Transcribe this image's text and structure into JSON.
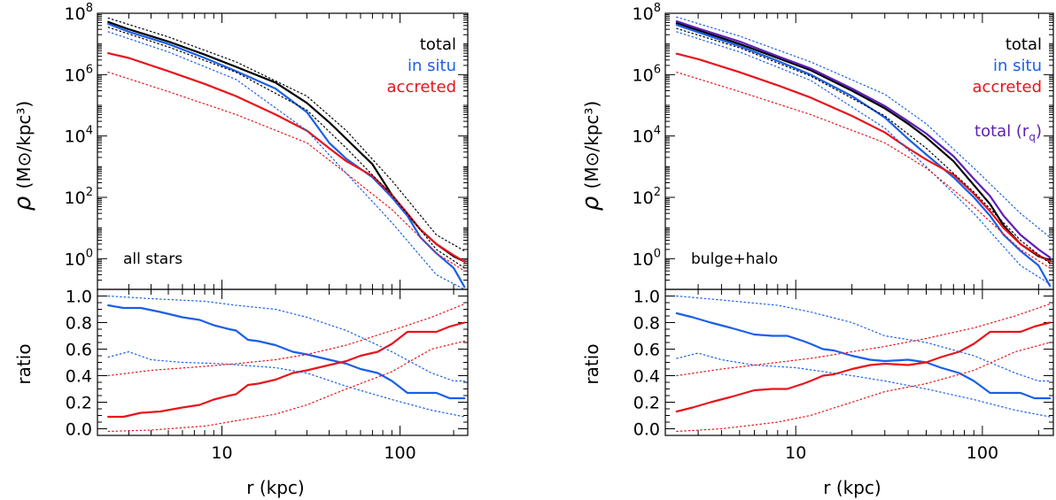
{
  "chart_data": [
    {
      "type": "line",
      "panel": "left-top",
      "annotation": "all stars",
      "xlabel": "",
      "ylabel": "ρ (M⊙/kpc³)",
      "xscale": "log",
      "yscale": "log",
      "xlim": [
        2.0,
        240
      ],
      "ylim": [
        0.1,
        100000000
      ],
      "ytick_labels": [
        "10^0",
        "10^2",
        "10^4",
        "10^6",
        "10^8"
      ],
      "legend": [
        "total",
        "in situ",
        "accreted"
      ],
      "legend_colors": [
        "#000000",
        "#1a5fe8",
        "#e8141b"
      ],
      "series": [
        {
          "name": "total",
          "style": "solid",
          "color": "#000000",
          "x": [
            2.3,
            3,
            5,
            8,
            12,
            20,
            30,
            40,
            50,
            70,
            90,
            110,
            130,
            160,
            200,
            230
          ],
          "y": [
            52000000.0,
            30000000.0,
            12000000.0,
            4500000.0,
            1800000.0,
            550000.0,
            120000.0,
            28000.0,
            8000,
            1200,
            120,
            28,
            9,
            3,
            1.2,
            0.8
          ]
        },
        {
          "name": "in situ",
          "style": "solid",
          "color": "#1a5fe8",
          "x": [
            2.3,
            3,
            5,
            8,
            12,
            20,
            30,
            40,
            50,
            70,
            90,
            110,
            130,
            160,
            200,
            230
          ],
          "y": [
            45000000.0,
            25000000.0,
            10000000.0,
            3500000.0,
            1300000.0,
            350000.0,
            60000.0,
            6000,
            1800,
            450,
            100,
            25,
            5,
            1.5,
            0.5,
            0.12
          ]
        },
        {
          "name": "accreted",
          "style": "solid",
          "color": "#e8141b",
          "x": [
            2.3,
            3,
            5,
            8,
            12,
            20,
            30,
            40,
            50,
            70,
            90,
            110,
            130,
            160,
            200,
            230
          ],
          "y": [
            5000000.0,
            3500000.0,
            1300000.0,
            500000.0,
            200000.0,
            50000.0,
            15000.0,
            4000,
            1500,
            500,
            120,
            30,
            9,
            3,
            1.3,
            0.8
          ]
        },
        {
          "name": "",
          "style": "dotted",
          "color": "#000000",
          "x": [
            2.3,
            5,
            12,
            30,
            50,
            90,
            160,
            230
          ],
          "y": [
            70000000.0,
            17000000.0,
            2600000.0,
            200000.0,
            15000.0,
            350,
            6,
            1.8
          ]
        },
        {
          "name": "",
          "style": "dotted",
          "color": "#000000",
          "x": [
            2.3,
            5,
            12,
            30,
            50,
            90,
            160,
            230
          ],
          "y": [
            35000000.0,
            8000000.0,
            1200000.0,
            70000.0,
            4000,
            120,
            2,
            0.5
          ]
        },
        {
          "name": "",
          "style": "dotted",
          "color": "#1a5fe8",
          "x": [
            2.3,
            5,
            12,
            30,
            50,
            90,
            160,
            230
          ],
          "y": [
            25000000.0,
            5500000.0,
            700000.0,
            15000.0,
            600,
            15,
            0.3,
            0.1
          ]
        },
        {
          "name": "",
          "style": "dotted",
          "color": "#e8141b",
          "x": [
            2.3,
            5,
            12,
            30,
            50,
            90,
            160,
            230
          ],
          "y": [
            1200000.0,
            280000.0,
            50000.0,
            6000,
            600,
            40,
            1.5,
            0.4
          ]
        }
      ]
    },
    {
      "type": "line",
      "panel": "left-bottom",
      "xlabel": "r (kpc)",
      "ylabel": "ratio",
      "xscale": "log",
      "xlim": [
        2.0,
        240
      ],
      "ylim": [
        -0.05,
        1.05
      ],
      "xtick_labels": [
        "10",
        "100"
      ],
      "ytick_labels": [
        "0.0",
        "0.2",
        "0.4",
        "0.6",
        "0.8",
        "1.0"
      ],
      "series": [
        {
          "name": "in situ",
          "style": "solid",
          "color": "#1a5fe8",
          "x": [
            2.3,
            2.8,
            3.5,
            4.5,
            6,
            7.5,
            9,
            11,
            12,
            14,
            16,
            20,
            25,
            30,
            40,
            50,
            60,
            75,
            90,
            110,
            130,
            160,
            190,
            230
          ],
          "y": [
            0.93,
            0.91,
            0.91,
            0.88,
            0.84,
            0.82,
            0.78,
            0.75,
            0.74,
            0.67,
            0.66,
            0.63,
            0.58,
            0.56,
            0.52,
            0.49,
            0.45,
            0.42,
            0.36,
            0.27,
            0.27,
            0.27,
            0.23,
            0.23
          ]
        },
        {
          "name": "accreted",
          "style": "solid",
          "color": "#e8141b",
          "x": [
            2.3,
            2.8,
            3.5,
            4.5,
            6,
            7.5,
            9,
            11,
            12,
            14,
            16,
            20,
            25,
            30,
            40,
            50,
            60,
            75,
            90,
            110,
            130,
            160,
            190,
            230
          ],
          "y": [
            0.09,
            0.09,
            0.12,
            0.13,
            0.16,
            0.18,
            0.22,
            0.25,
            0.26,
            0.33,
            0.34,
            0.37,
            0.42,
            0.44,
            0.48,
            0.51,
            0.55,
            0.58,
            0.64,
            0.73,
            0.73,
            0.73,
            0.77,
            0.8
          ]
        },
        {
          "name": "",
          "style": "dotted",
          "color": "#1a5fe8",
          "x": [
            2.3,
            4,
            8,
            12,
            20,
            30,
            50,
            90,
            150,
            200,
            230
          ],
          "y": [
            1.0,
            0.98,
            0.96,
            0.93,
            0.9,
            0.84,
            0.74,
            0.58,
            0.42,
            0.36,
            0.36
          ]
        },
        {
          "name": "",
          "style": "dotted",
          "color": "#1a5fe8",
          "x": [
            2.3,
            3,
            4,
            6,
            10,
            20,
            30,
            50,
            90,
            150,
            230
          ],
          "y": [
            0.54,
            0.58,
            0.52,
            0.5,
            0.49,
            0.46,
            0.42,
            0.32,
            0.22,
            0.14,
            0.09
          ]
        },
        {
          "name": "",
          "style": "dotted",
          "color": "#e8141b",
          "x": [
            2.3,
            4,
            8,
            12,
            20,
            30,
            50,
            90,
            150,
            230
          ],
          "y": [
            0.4,
            0.44,
            0.47,
            0.49,
            0.52,
            0.56,
            0.63,
            0.74,
            0.84,
            0.94
          ]
        },
        {
          "name": "",
          "style": "dotted",
          "color": "#e8141b",
          "x": [
            2.3,
            4,
            8,
            12,
            20,
            30,
            50,
            90,
            150,
            230
          ],
          "y": [
            -0.02,
            -0.01,
            0.02,
            0.06,
            0.11,
            0.18,
            0.3,
            0.43,
            0.6,
            0.66
          ]
        }
      ]
    },
    {
      "type": "line",
      "panel": "right-top",
      "annotation": "bulge+halo",
      "xlabel": "",
      "ylabel": "ρ (M⊙/kpc³)",
      "xscale": "log",
      "yscale": "log",
      "xlim": [
        2.0,
        240
      ],
      "ylim": [
        0.1,
        100000000
      ],
      "ytick_labels": [
        "10^0",
        "10^2",
        "10^4",
        "10^6",
        "10^8"
      ],
      "legend": [
        "total",
        "in situ",
        "accreted",
        "total (r_q)"
      ],
      "legend_colors": [
        "#000000",
        "#1a5fe8",
        "#e8141b",
        "#5b1fb8"
      ],
      "series": [
        {
          "name": "total",
          "style": "solid",
          "color": "#000000",
          "x": [
            2.3,
            3,
            5,
            8,
            12,
            20,
            30,
            40,
            50,
            70,
            90,
            110,
            130,
            160,
            200,
            230
          ],
          "y": [
            48000000.0,
            28000000.0,
            10000000.0,
            3500000.0,
            1400000.0,
            300000.0,
            80000.0,
            25000.0,
            9000,
            1500,
            250,
            60,
            12,
            3,
            1.2,
            0.9
          ]
        },
        {
          "name": "in situ",
          "style": "solid",
          "color": "#1a5fe8",
          "x": [
            2.3,
            3,
            5,
            8,
            12,
            20,
            30,
            40,
            50,
            70,
            90,
            110,
            130,
            160,
            200,
            230
          ],
          "y": [
            42000000.0,
            24000000.0,
            8500000.0,
            2800000.0,
            1000000.0,
            200000.0,
            40000.0,
            8000,
            2500,
            450,
            100,
            25,
            6,
            1.8,
            0.6,
            0.13
          ]
        },
        {
          "name": "accreted",
          "style": "solid",
          "color": "#e8141b",
          "x": [
            2.3,
            3,
            5,
            8,
            12,
            20,
            30,
            40,
            50,
            70,
            90,
            110,
            130,
            160,
            200,
            230
          ],
          "y": [
            4800000.0,
            3200000.0,
            1200000.0,
            450000.0,
            180000.0,
            45000.0,
            13000.0,
            4000,
            1700,
            550,
            130,
            35,
            10,
            3,
            1.3,
            0.8
          ]
        },
        {
          "name": "total (r_q)",
          "style": "solid",
          "color": "#5b1fb8",
          "x": [
            2.3,
            3,
            5,
            8,
            12,
            20,
            30,
            40,
            50,
            70,
            90,
            110,
            130,
            160,
            200,
            230
          ],
          "y": [
            55000000.0,
            32000000.0,
            12000000.0,
            4000000.0,
            1600000.0,
            350000.0,
            95000.0,
            30000.0,
            12000.0,
            2200,
            400,
            110,
            25,
            6,
            2,
            1.1
          ]
        },
        {
          "name": "",
          "style": "dotted",
          "color": "#1a5fe8",
          "x": [
            2.3,
            5,
            12,
            30,
            50,
            90,
            160,
            230
          ],
          "y": [
            75000000.0,
            18000000.0,
            2600000.0,
            230000.0,
            25000.0,
            900,
            30,
            5
          ]
        },
        {
          "name": "",
          "style": "dotted",
          "color": "#1a5fe8",
          "x": [
            2.3,
            5,
            12,
            30,
            50,
            90,
            160,
            230
          ],
          "y": [
            25000000.0,
            5500000.0,
            650000.0,
            18000.0,
            1000,
            30,
            0.6,
            0.15
          ]
        },
        {
          "name": "",
          "style": "dotted",
          "color": "#000000",
          "x": [
            2.3,
            5,
            12,
            30,
            50,
            90,
            160,
            230
          ],
          "y": [
            32000000.0,
            7500000.0,
            900000.0,
            45000.0,
            4000,
            150,
            4,
            0.7
          ]
        },
        {
          "name": "",
          "style": "dotted",
          "color": "#e8141b",
          "x": [
            2.3,
            5,
            12,
            30,
            50,
            90,
            160,
            230
          ],
          "y": [
            1200000.0,
            280000.0,
            50000.0,
            6000,
            900,
            50,
            2,
            0.5
          ]
        }
      ]
    },
    {
      "type": "line",
      "panel": "right-bottom",
      "xlabel": "r (kpc)",
      "ylabel": "ratio",
      "xscale": "log",
      "xlim": [
        2.0,
        240
      ],
      "ylim": [
        -0.05,
        1.05
      ],
      "xtick_labels": [
        "10",
        "100"
      ],
      "ytick_labels": [
        "0.0",
        "0.2",
        "0.4",
        "0.6",
        "0.8",
        "1.0"
      ],
      "series": [
        {
          "name": "in situ",
          "style": "solid",
          "color": "#1a5fe8",
          "x": [
            2.3,
            2.8,
            3.5,
            4.5,
            6,
            7.5,
            9,
            11,
            12,
            14,
            16,
            20,
            25,
            30,
            40,
            50,
            60,
            75,
            90,
            110,
            130,
            160,
            190,
            230
          ],
          "y": [
            0.87,
            0.84,
            0.8,
            0.76,
            0.71,
            0.7,
            0.7,
            0.66,
            0.64,
            0.6,
            0.59,
            0.55,
            0.52,
            0.51,
            0.52,
            0.5,
            0.46,
            0.42,
            0.36,
            0.27,
            0.27,
            0.27,
            0.23,
            0.23
          ]
        },
        {
          "name": "accreted",
          "style": "solid",
          "color": "#e8141b",
          "x": [
            2.3,
            2.8,
            3.5,
            4.5,
            6,
            7.5,
            9,
            11,
            12,
            14,
            16,
            20,
            25,
            30,
            40,
            50,
            60,
            75,
            90,
            110,
            130,
            160,
            190,
            230
          ],
          "y": [
            0.13,
            0.16,
            0.2,
            0.24,
            0.29,
            0.3,
            0.3,
            0.34,
            0.36,
            0.4,
            0.41,
            0.45,
            0.48,
            0.49,
            0.48,
            0.5,
            0.54,
            0.58,
            0.64,
            0.73,
            0.73,
            0.73,
            0.77,
            0.8
          ]
        },
        {
          "name": "",
          "style": "dotted",
          "color": "#1a5fe8",
          "x": [
            2.3,
            4,
            8,
            12,
            20,
            30,
            50,
            90,
            150,
            200,
            230
          ],
          "y": [
            1.0,
            0.97,
            0.93,
            0.88,
            0.8,
            0.7,
            0.65,
            0.55,
            0.42,
            0.36,
            0.36
          ]
        },
        {
          "name": "",
          "style": "dotted",
          "color": "#1a5fe8",
          "x": [
            2.3,
            3,
            4,
            6,
            10,
            20,
            30,
            50,
            90,
            150,
            230
          ],
          "y": [
            0.53,
            0.57,
            0.52,
            0.48,
            0.46,
            0.4,
            0.36,
            0.3,
            0.22,
            0.14,
            0.09
          ]
        },
        {
          "name": "",
          "style": "dotted",
          "color": "#e8141b",
          "x": [
            2.3,
            4,
            8,
            12,
            20,
            30,
            50,
            90,
            150,
            230
          ],
          "y": [
            0.4,
            0.45,
            0.5,
            0.53,
            0.58,
            0.62,
            0.68,
            0.76,
            0.85,
            0.94
          ]
        },
        {
          "name": "",
          "style": "dotted",
          "color": "#e8141b",
          "x": [
            2.3,
            4,
            8,
            12,
            20,
            30,
            50,
            90,
            150,
            230
          ],
          "y": [
            -0.02,
            0.0,
            0.05,
            0.1,
            0.2,
            0.28,
            0.34,
            0.44,
            0.58,
            0.65
          ]
        }
      ]
    }
  ]
}
